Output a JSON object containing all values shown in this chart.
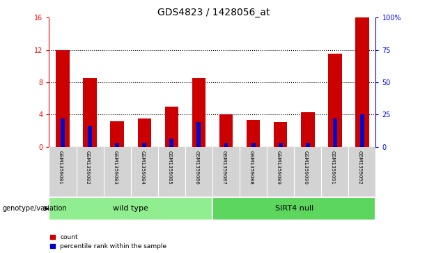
{
  "title": "GDS4823 / 1428056_at",
  "samples": [
    "GSM1359081",
    "GSM1359082",
    "GSM1359083",
    "GSM1359084",
    "GSM1359085",
    "GSM1359086",
    "GSM1359087",
    "GSM1359088",
    "GSM1359089",
    "GSM1359090",
    "GSM1359091",
    "GSM1359092"
  ],
  "count": [
    12.0,
    8.5,
    3.2,
    3.5,
    5.0,
    8.5,
    4.0,
    3.3,
    3.1,
    4.3,
    11.5,
    16.0
  ],
  "percentile": [
    22,
    16,
    3,
    3,
    6,
    19,
    3,
    3,
    3,
    3,
    22,
    25
  ],
  "bar_color_red": "#cc0000",
  "bar_color_blue": "#0000cc",
  "ylim_left": [
    0,
    16
  ],
  "ylim_right": [
    0,
    100
  ],
  "yticks_left": [
    0,
    4,
    8,
    12,
    16
  ],
  "yticks_right": [
    0,
    25,
    50,
    75,
    100
  ],
  "ytick_labels_right": [
    "0",
    "25",
    "50",
    "75",
    "100%"
  ],
  "group1_label": "wild type",
  "group2_label": "SIRT4 null",
  "group1_color": "#90ee90",
  "group2_color": "#5cd65c",
  "group_row_label": "genotype/variation",
  "legend_count": "count",
  "legend_percentile": "percentile rank within the sample",
  "tick_bg": "#d3d3d3",
  "bar_width": 0.5,
  "red_bar_width": 0.5,
  "blue_bar_width": 0.15,
  "title_fontsize": 10,
  "axis_fontsize": 7,
  "label_fontsize": 6,
  "group_fontsize": 8
}
